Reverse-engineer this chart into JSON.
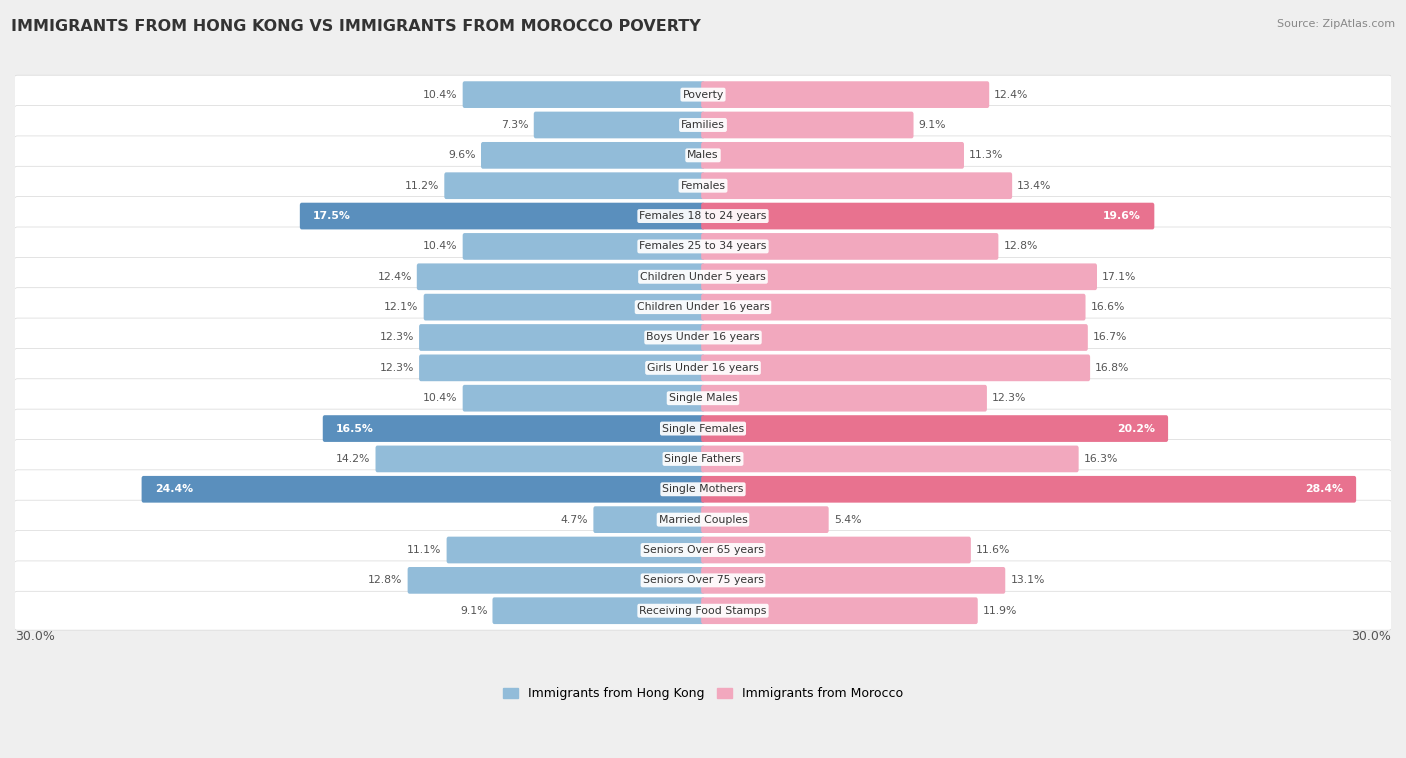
{
  "title": "IMMIGRANTS FROM HONG KONG VS IMMIGRANTS FROM MOROCCO POVERTY",
  "source": "Source: ZipAtlas.com",
  "categories": [
    "Poverty",
    "Families",
    "Males",
    "Females",
    "Females 18 to 24 years",
    "Females 25 to 34 years",
    "Children Under 5 years",
    "Children Under 16 years",
    "Boys Under 16 years",
    "Girls Under 16 years",
    "Single Males",
    "Single Females",
    "Single Fathers",
    "Single Mothers",
    "Married Couples",
    "Seniors Over 65 years",
    "Seniors Over 75 years",
    "Receiving Food Stamps"
  ],
  "hong_kong": [
    10.4,
    7.3,
    9.6,
    11.2,
    17.5,
    10.4,
    12.4,
    12.1,
    12.3,
    12.3,
    10.4,
    16.5,
    14.2,
    24.4,
    4.7,
    11.1,
    12.8,
    9.1
  ],
  "morocco": [
    12.4,
    9.1,
    11.3,
    13.4,
    19.6,
    12.8,
    17.1,
    16.6,
    16.7,
    16.8,
    12.3,
    20.2,
    16.3,
    28.4,
    5.4,
    11.6,
    13.1,
    11.9
  ],
  "hk_color": "#92bcd9",
  "morocco_color": "#f2a8be",
  "highlight_hk_color": "#5a8fbd",
  "highlight_morocco_color": "#e8728f",
  "hk_highlight": [
    4,
    11,
    13
  ],
  "background_color": "#efefef",
  "bar_bg_color": "#ffffff",
  "axis_max": 30.0,
  "legend_label_hk": "Immigrants from Hong Kong",
  "legend_label_morocco": "Immigrants from Morocco"
}
